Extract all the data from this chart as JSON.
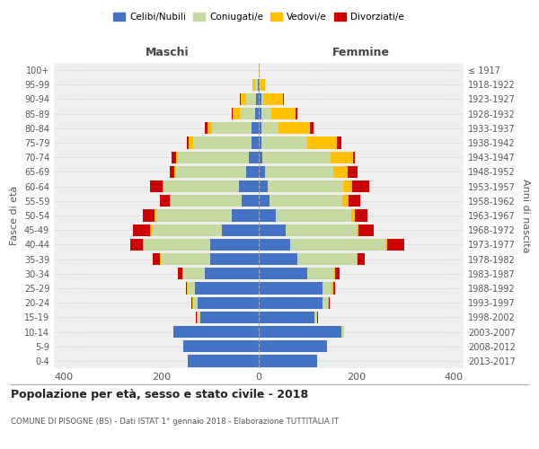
{
  "age_groups": [
    "0-4",
    "5-9",
    "10-14",
    "15-19",
    "20-24",
    "25-29",
    "30-34",
    "35-39",
    "40-44",
    "45-49",
    "50-54",
    "55-59",
    "60-64",
    "65-69",
    "70-74",
    "75-79",
    "80-84",
    "85-89",
    "90-94",
    "95-99",
    "100+"
  ],
  "birth_years": [
    "2013-2017",
    "2008-2012",
    "2003-2007",
    "1998-2002",
    "1993-1997",
    "1988-1992",
    "1983-1987",
    "1978-1982",
    "1973-1977",
    "1968-1972",
    "1963-1967",
    "1958-1962",
    "1953-1957",
    "1948-1952",
    "1943-1947",
    "1938-1942",
    "1933-1937",
    "1928-1932",
    "1923-1927",
    "1918-1922",
    "≤ 1917"
  ],
  "male_celibe": [
    145,
    155,
    175,
    120,
    125,
    130,
    110,
    100,
    100,
    75,
    55,
    35,
    40,
    25,
    20,
    15,
    15,
    8,
    5,
    2,
    0
  ],
  "male_coniugato": [
    0,
    0,
    0,
    5,
    10,
    15,
    45,
    100,
    135,
    145,
    155,
    145,
    155,
    145,
    145,
    120,
    80,
    30,
    20,
    5,
    0
  ],
  "male_vedovo": [
    0,
    0,
    0,
    2,
    2,
    2,
    2,
    3,
    3,
    3,
    3,
    3,
    3,
    3,
    5,
    8,
    10,
    15,
    12,
    5,
    0
  ],
  "male_divorziato": [
    0,
    0,
    0,
    2,
    2,
    2,
    8,
    15,
    25,
    35,
    25,
    20,
    25,
    10,
    8,
    5,
    5,
    2,
    2,
    0,
    0
  ],
  "female_celibe": [
    120,
    140,
    170,
    115,
    130,
    130,
    100,
    80,
    65,
    55,
    35,
    22,
    18,
    12,
    8,
    5,
    5,
    5,
    5,
    2,
    0
  ],
  "female_coniugata": [
    0,
    0,
    5,
    5,
    12,
    20,
    55,
    120,
    195,
    145,
    155,
    150,
    155,
    140,
    140,
    95,
    35,
    20,
    5,
    2,
    0
  ],
  "female_vedova": [
    0,
    0,
    0,
    0,
    2,
    2,
    2,
    3,
    3,
    5,
    8,
    12,
    18,
    30,
    45,
    60,
    65,
    50,
    40,
    8,
    2
  ],
  "female_divorziata": [
    0,
    0,
    0,
    2,
    2,
    5,
    8,
    15,
    35,
    30,
    25,
    25,
    35,
    20,
    5,
    10,
    8,
    5,
    2,
    0,
    0
  ],
  "colors": {
    "celibe": "#4472C4",
    "coniugato": "#C5D9A0",
    "vedovo": "#FFC000",
    "divorziato": "#CC0000"
  },
  "title": "Popolazione per età, sesso e stato civile - 2018",
  "subtitle": "COMUNE DI PISOGNE (BS) - Dati ISTAT 1° gennaio 2018 - Elaborazione TUTTITALIA.IT",
  "ylabel_left": "Fasce di età",
  "ylabel_right": "Anni di nascita",
  "xlabel_left": "Maschi",
  "xlabel_right": "Femmine",
  "xlim": 420,
  "background_color": "#ffffff",
  "plot_bg_color": "#efefef",
  "grid_color": "#cccccc"
}
